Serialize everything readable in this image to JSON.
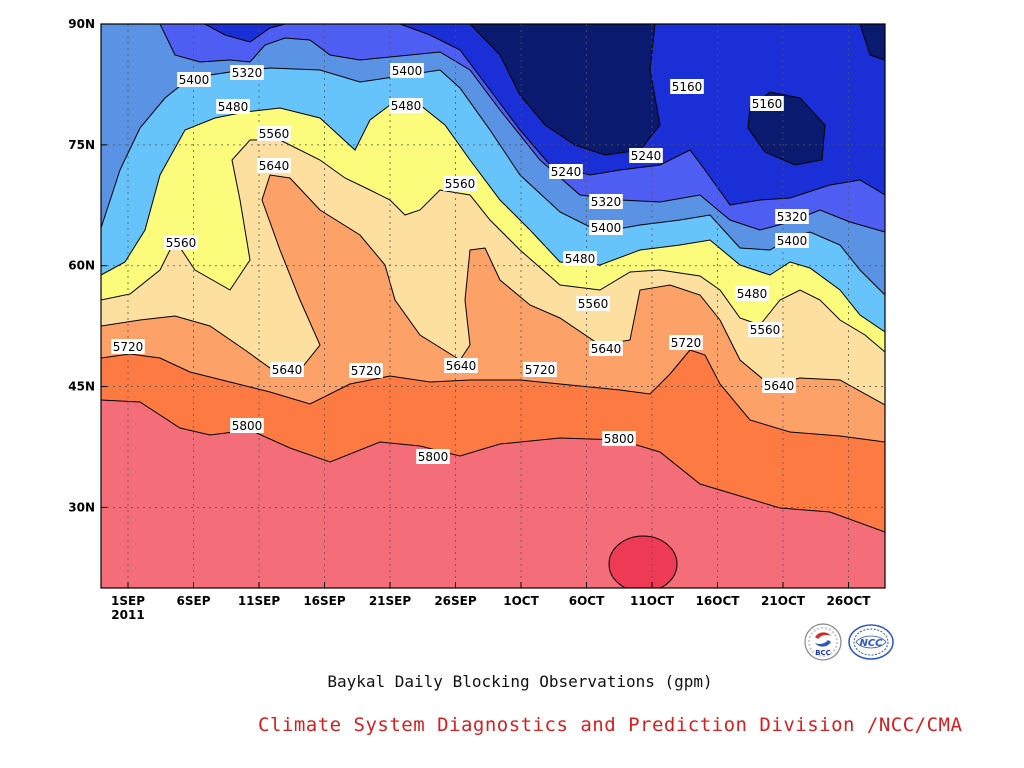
{
  "colors": {
    "levels_fill": [
      "#0a1a6e",
      "#1a2fd6",
      "#4f5ef2",
      "#5a93e3",
      "#66c4fa",
      "#fbfb7c",
      "#fddfa0",
      "#fca167",
      "#fd7a43",
      "#f46e7a",
      "#ee3a55"
    ],
    "contour_line": "#000000",
    "credit_text": "#d42020"
  },
  "chart_data": {
    "type": "contour",
    "title": "Baykal Daily Blocking Observations (gpm)",
    "credit": "Climate System Diagnostics and Prediction Division /NCC/CMA",
    "x_ticks": [
      "1SEP",
      "6SEP",
      "11SEP",
      "16SEP",
      "21SEP",
      "26SEP",
      "1OCT",
      "6OCT",
      "11OCT",
      "16OCT",
      "21OCT",
      "26OCT"
    ],
    "x_year": "2011",
    "y_ticks": [
      "30N",
      "45N",
      "60N",
      "75N",
      "90N"
    ],
    "y_range": [
      20,
      90
    ],
    "contour_levels": [
      5160,
      5240,
      5320,
      5400,
      5480,
      5560,
      5640,
      5720,
      5800,
      5880
    ],
    "contour_labels": [
      "5400",
      "5320",
      "5400",
      "5480",
      "5480",
      "5560",
      "5640",
      "5560",
      "5560",
      "5720",
      "5640",
      "5720",
      "5640",
      "5720",
      "5800",
      "5800",
      "5800",
      "5240",
      "5160",
      "5240",
      "5160",
      "5320",
      "5400",
      "5480",
      "5560",
      "5640",
      "5720",
      "5320",
      "5400",
      "5480",
      "5560",
      "5640"
    ],
    "logos": [
      {
        "name": "bcc-logo",
        "text": "BCC"
      },
      {
        "name": "ncc-logo",
        "text": "NCC"
      }
    ]
  }
}
